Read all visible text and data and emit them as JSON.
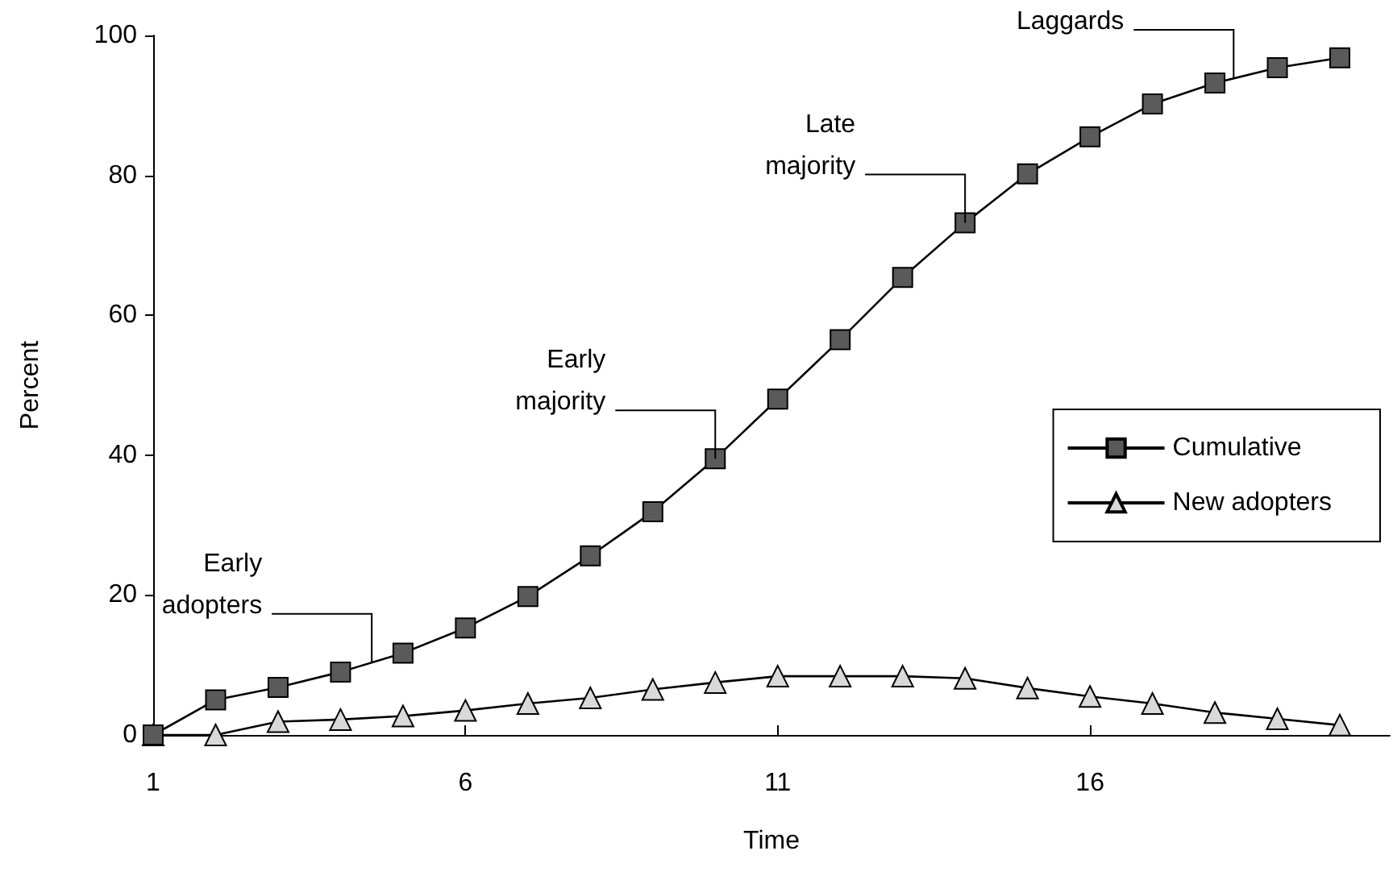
{
  "chart_data": {
    "type": "line",
    "xlabel": "Time",
    "ylabel": "Percent",
    "x": [
      1,
      2,
      3,
      4,
      5,
      6,
      7,
      8,
      9,
      10,
      11,
      12,
      13,
      14,
      15,
      16,
      17,
      18,
      19,
      20
    ],
    "series": [
      {
        "name": "Cumulative",
        "color": "#5a5a5a",
        "marker": "square",
        "values": [
          0,
          5.0,
          6.8,
          9.0,
          11.7,
          15.3,
          19.8,
          25.6,
          31.9,
          39.5,
          48.0,
          56.5,
          65.4,
          73.2,
          80.2,
          85.5,
          90.2,
          93.2,
          95.4,
          96.8
        ]
      },
      {
        "name": "New adopters",
        "color": "#d9d9d9",
        "marker": "triangle",
        "values": [
          0,
          0,
          1.9,
          2.2,
          2.7,
          3.5,
          4.5,
          5.3,
          6.5,
          7.5,
          8.4,
          8.4,
          8.4,
          8.1,
          6.7,
          5.5,
          4.5,
          3.2,
          2.3,
          1.4
        ]
      }
    ],
    "xlim": [
      1,
      20.8
    ],
    "xticks": [
      1,
      6,
      11,
      16
    ],
    "ylim": [
      0,
      100
    ],
    "yticks": [
      0,
      20,
      40,
      60,
      80,
      100
    ],
    "grid": false,
    "legend": "right",
    "line_style": "solid",
    "annotations": [
      {
        "text": "Early adopters",
        "x": 4.5,
        "y": 10.4
      },
      {
        "text": "Early majority",
        "x": 10,
        "y": 39.5
      },
      {
        "text": "Late majority",
        "x": 14,
        "y": 73.2
      },
      {
        "text": "Laggards",
        "x": 18.3,
        "y": 93.9
      }
    ]
  }
}
